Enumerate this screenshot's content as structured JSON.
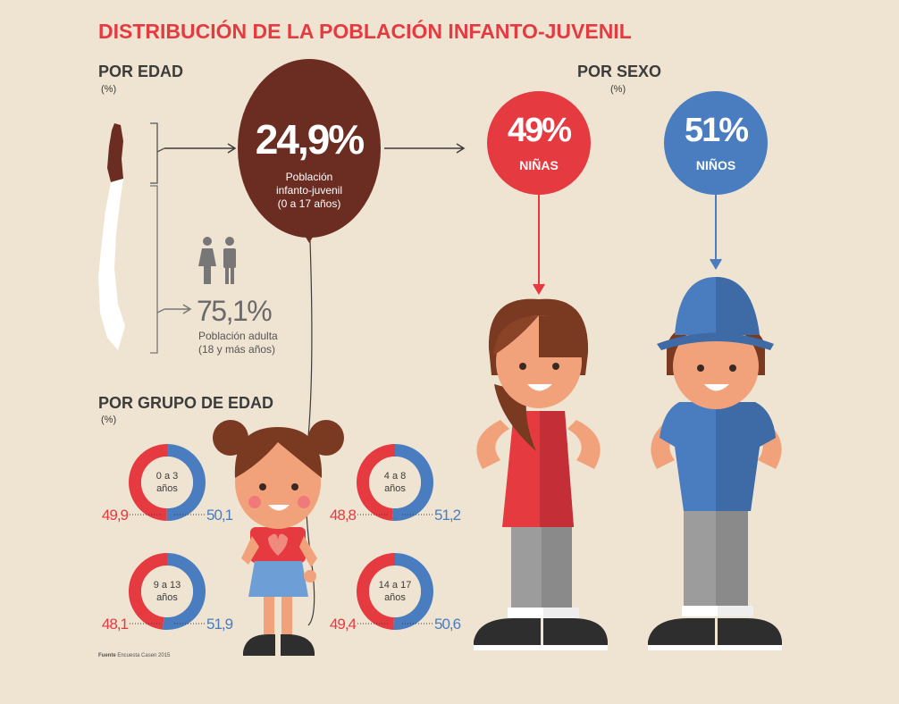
{
  "title": "DISTRIBUCIÓN DE LA POBLACIÓN INFANTO-JUVENIL",
  "por_edad": {
    "heading": "POR EDAD",
    "unit": "(%)",
    "youth": {
      "value": "24,9%",
      "label_lines": [
        "Población",
        "infanto-juvenil",
        "(0 a 17 años)"
      ]
    },
    "adult": {
      "value": "75,1%",
      "label_lines": [
        "Población adulta",
        "(18 y más años)"
      ]
    }
  },
  "por_sexo": {
    "heading": "POR SEXO",
    "unit": "(%)",
    "girls": {
      "value": "49%",
      "label": "NIÑAS"
    },
    "boys": {
      "value": "51%",
      "label": "NIÑOS"
    }
  },
  "por_grupo": {
    "heading": "POR GRUPO DE EDAD",
    "unit": "(%)",
    "groups": [
      {
        "label_lines": [
          "0 a 3",
          "años"
        ],
        "girls": 49.9,
        "girls_label": "49,9",
        "boys": 50.1,
        "boys_label": "50,1"
      },
      {
        "label_lines": [
          "4 a 8",
          "años"
        ],
        "girls": 48.8,
        "girls_label": "48,8",
        "boys": 51.2,
        "boys_label": "51,2"
      },
      {
        "label_lines": [
          "9 a 13",
          "años"
        ],
        "girls": 48.1,
        "girls_label": "48,1",
        "boys": 51.9,
        "boys_label": "51,9"
      },
      {
        "label_lines": [
          "14 a 17",
          "años"
        ],
        "girls": 49.4,
        "girls_label": "49,4",
        "boys": 50.6,
        "boys_label": "50,6"
      }
    ]
  },
  "source": {
    "label": "Fuente",
    "text": "Encuesta Casen 2015"
  }
}
